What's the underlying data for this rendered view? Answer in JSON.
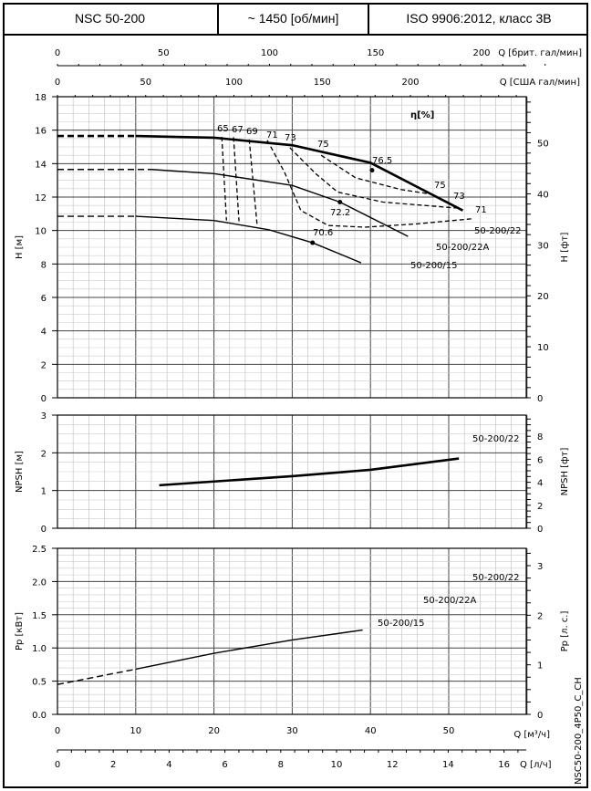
{
  "header": {
    "model": "NSC 50-200",
    "speed": "~ 1450 [об/мин]",
    "standard": "ISO 9906:2012, класс 3B"
  },
  "code": "NSC50-200_4P50_C_CH",
  "chart_data": [
    {
      "type": "line",
      "title": "H-Q",
      "xlabel": "Q [м³/ч]",
      "ylabel": "H [м]",
      "ylabel_right": "H [фт]",
      "xlim": [
        0,
        60
      ],
      "ylim": [
        0,
        18
      ],
      "yticks": [
        0,
        2,
        4,
        6,
        8,
        10,
        12,
        14,
        16,
        18
      ],
      "yticks_right": [
        0,
        10,
        20,
        30,
        40,
        50
      ],
      "top_axes": [
        {
          "label": "Q [брит. гал/мин]",
          "ticks": [
            0,
            50,
            100,
            150,
            200
          ]
        },
        {
          "label": "Q [США гал/мин]",
          "ticks": [
            0,
            50,
            100,
            150,
            200
          ]
        }
      ],
      "efficiency_label": "η[%]",
      "series": [
        {
          "name": "50-200/22",
          "bold": true,
          "dashed_to": 10,
          "x": [
            0,
            10,
            20,
            30,
            40,
            46,
            51.8
          ],
          "y": [
            15.65,
            15.65,
            15.55,
            15.1,
            14.05,
            12.6,
            11.2
          ],
          "bep": {
            "x": 40.2,
            "y": 13.6,
            "label": "76.5"
          }
        },
        {
          "name": "50-200/22A",
          "dashed_to": 12,
          "x": [
            0,
            12,
            20,
            30,
            36.1,
            44.8
          ],
          "y": [
            13.65,
            13.65,
            13.4,
            12.7,
            11.7,
            9.65
          ],
          "bep": {
            "x": 36.1,
            "y": 11.7,
            "label": "72.2"
          }
        },
        {
          "name": "50-200/15",
          "dashed_to": 10,
          "x": [
            0,
            10,
            20,
            27,
            32.6,
            38.8
          ],
          "y": [
            10.85,
            10.85,
            10.6,
            10.05,
            9.27,
            8.07
          ],
          "bep": {
            "x": 32.6,
            "y": 9.27,
            "label": "70.6"
          }
        }
      ],
      "iso_efficiency": [
        {
          "label": "65",
          "x": [
            21.0,
            21.6
          ],
          "y": [
            15.6,
            10.6
          ]
        },
        {
          "label": "67",
          "x": [
            22.5,
            23.2
          ],
          "y": [
            15.58,
            10.55
          ]
        },
        {
          "label": "69",
          "x": [
            24.5,
            25.5
          ],
          "y": [
            15.45,
            10.4
          ]
        },
        {
          "label": "71",
          "x": [
            26.8,
            29,
            31.1,
            34.6,
            39.3,
            46,
            52.9
          ],
          "y": [
            15.4,
            13.5,
            11.2,
            10.3,
            10.2,
            10.4,
            10.7
          ],
          "right_label": "71"
        },
        {
          "label": "73",
          "x": [
            29.7,
            33,
            35.8,
            41.6,
            50.9
          ],
          "y": [
            14.95,
            13.4,
            12.3,
            11.7,
            11.35
          ],
          "right_label": "73"
        },
        {
          "label": "75",
          "x": [
            33.7,
            38.1,
            43.9,
            47.4
          ],
          "y": [
            14.5,
            13.15,
            12.45,
            12.2
          ],
          "right_label": "75"
        }
      ]
    },
    {
      "type": "line",
      "title": "NPSH",
      "ylabel": "NPSH [м]",
      "ylabel_right": "NPSH [фт]",
      "xlim": [
        0,
        60
      ],
      "ylim": [
        0,
        3
      ],
      "yticks": [
        0,
        1,
        2,
        3
      ],
      "yticks_right": [
        0,
        2,
        4,
        6,
        8
      ],
      "series": [
        {
          "name": "50-200/22",
          "bold": true,
          "x": [
            13,
            20,
            30,
            40,
            51.3
          ],
          "y": [
            1.14,
            1.24,
            1.38,
            1.55,
            1.85
          ]
        }
      ]
    },
    {
      "type": "line",
      "title": "Power",
      "ylabel": "Pp [кВт]",
      "ylabel_right": "Pp [л. с.]",
      "xlim": [
        0,
        60
      ],
      "ylim": [
        0,
        2.5
      ],
      "yticks": [
        0,
        0.5,
        1.0,
        1.5,
        2.0,
        2.5
      ],
      "yticks_right": [
        0,
        1,
        2,
        3
      ],
      "series": [
        {
          "name": "50-200/22",
          "bold": true,
          "dashed_to": 13,
          "x": [
            0,
            10,
            20,
            30,
            40,
            51.8
          ],
          "y": [
            0.71,
            1.0,
            1.32,
            1.62,
            1.93,
            2.18
          ]
        },
        {
          "name": "50-200/22A",
          "dashed_to": 11,
          "x": [
            0,
            10,
            20,
            30,
            40,
            45
          ],
          "y": [
            0.62,
            0.88,
            1.15,
            1.43,
            1.66,
            1.78
          ]
        },
        {
          "name": "50-200/15",
          "dashed_to": 10,
          "x": [
            0,
            10,
            20,
            30,
            39
          ],
          "y": [
            0.45,
            0.68,
            0.92,
            1.12,
            1.27
          ]
        }
      ]
    },
    {
      "type": "axis",
      "xlabel": "Q [м³/ч]",
      "xticks": [
        0,
        10,
        20,
        30,
        40,
        50
      ],
      "xlabel2": "Q [л/ч]",
      "xticks2": [
        0,
        2,
        4,
        6,
        8,
        10,
        12,
        14,
        16
      ]
    }
  ]
}
